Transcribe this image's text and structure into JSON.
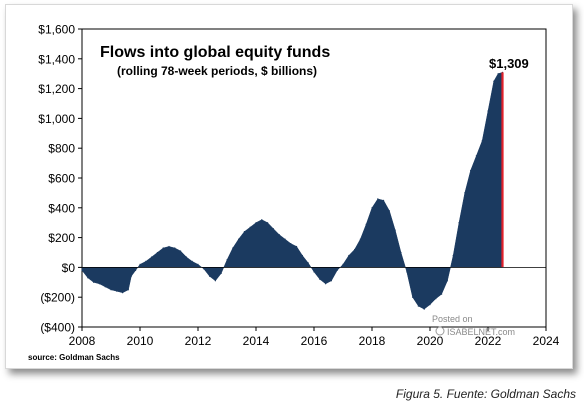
{
  "caption": "Figura 5. Fuente: Goldman Sachs",
  "watermark": {
    "line1": "Posted on",
    "line2": "ISABELNET.com"
  },
  "chart_data": {
    "type": "area",
    "title": "Flows into global equity funds",
    "subtitle": "(rolling 78-week periods, $ billions)",
    "source": "source: Goldman Sachs",
    "last_value_label": "$1,309",
    "xlim": [
      2008,
      2024
    ],
    "ylim": [
      -400,
      1600
    ],
    "x_ticks": [
      2008,
      2010,
      2012,
      2014,
      2016,
      2018,
      2020,
      2022,
      2024
    ],
    "x_tick_labels": [
      "2008",
      "2010",
      "2012",
      "2014",
      "2016",
      "2018",
      "2020",
      "2022",
      "2024"
    ],
    "y_ticks": [
      -400,
      -200,
      0,
      200,
      400,
      600,
      800,
      1000,
      1200,
      1400,
      1600
    ],
    "y_tick_labels": [
      "($400)",
      "($200)",
      "$0",
      "$200",
      "$400",
      "$600",
      "$800",
      "$1,000",
      "$1,200",
      "$1,400",
      "$1,600"
    ],
    "grid": false,
    "series": [
      {
        "color": "#1b3a60",
        "x": [
          2008.0,
          2008.2,
          2008.4,
          2008.6,
          2008.8,
          2009.0,
          2009.2,
          2009.4,
          2009.6,
          2009.7,
          2009.85,
          2010.0,
          2010.2,
          2010.4,
          2010.6,
          2010.8,
          2011.0,
          2011.2,
          2011.4,
          2011.6,
          2011.8,
          2012.0,
          2012.2,
          2012.4,
          2012.6,
          2012.8,
          2013.0,
          2013.2,
          2013.4,
          2013.6,
          2013.8,
          2014.0,
          2014.2,
          2014.4,
          2014.6,
          2014.8,
          2015.0,
          2015.2,
          2015.4,
          2015.6,
          2015.8,
          2016.0,
          2016.2,
          2016.4,
          2016.6,
          2016.8,
          2017.0,
          2017.2,
          2017.4,
          2017.6,
          2017.8,
          2018.0,
          2018.2,
          2018.4,
          2018.6,
          2018.8,
          2019.0,
          2019.2,
          2019.4,
          2019.6,
          2019.8,
          2020.0,
          2020.2,
          2020.4,
          2020.6,
          2020.8,
          2021.0,
          2021.2,
          2021.4,
          2021.6,
          2021.8,
          2022.0,
          2022.2,
          2022.35,
          2022.5
        ],
        "y": [
          -20,
          -70,
          -100,
          -110,
          -130,
          -150,
          -160,
          -170,
          -150,
          -60,
          -20,
          20,
          40,
          70,
          100,
          130,
          140,
          130,
          110,
          70,
          40,
          20,
          -10,
          -60,
          -90,
          -40,
          50,
          130,
          190,
          240,
          270,
          300,
          320,
          300,
          260,
          220,
          190,
          160,
          140,
          80,
          30,
          -30,
          -80,
          -110,
          -90,
          -20,
          20,
          80,
          120,
          190,
          290,
          400,
          460,
          450,
          380,
          250,
          100,
          -30,
          -200,
          -260,
          -280,
          -250,
          -210,
          -180,
          -90,
          80,
          300,
          500,
          650,
          750,
          850,
          1050,
          1250,
          1300,
          1309
        ]
      }
    ]
  }
}
